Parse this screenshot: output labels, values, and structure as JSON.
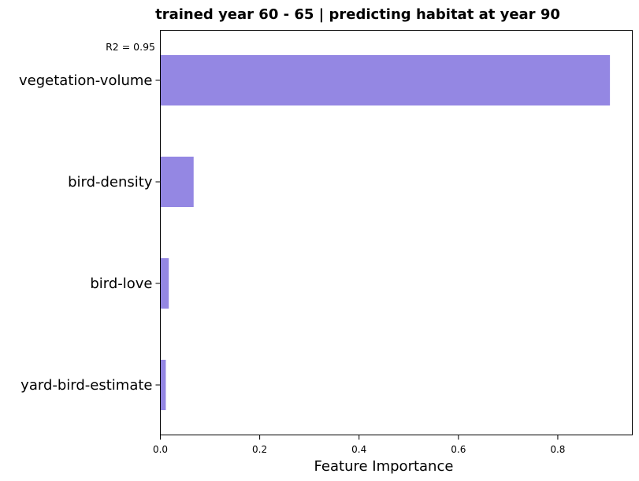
{
  "chart_data": {
    "type": "bar",
    "orientation": "horizontal",
    "title": "trained year 60 - 65 | predicting habitat at year 90",
    "annotation": "R2 = 0.95",
    "xlabel": "Feature Importance",
    "ylabel": "",
    "categories": [
      "vegetation-volume",
      "bird-density",
      "bird-love",
      "yard-bird-estimate"
    ],
    "values": [
      0.905,
      0.067,
      0.017,
      0.011
    ],
    "xlim": [
      0,
      0.95
    ],
    "xticks": [
      0.0,
      0.2,
      0.4,
      0.6,
      0.8
    ],
    "xtick_labels": [
      "0.0",
      "0.2",
      "0.4",
      "0.6",
      "0.8"
    ],
    "bar_color": "#9487E3",
    "grid": false,
    "legend": "none"
  }
}
